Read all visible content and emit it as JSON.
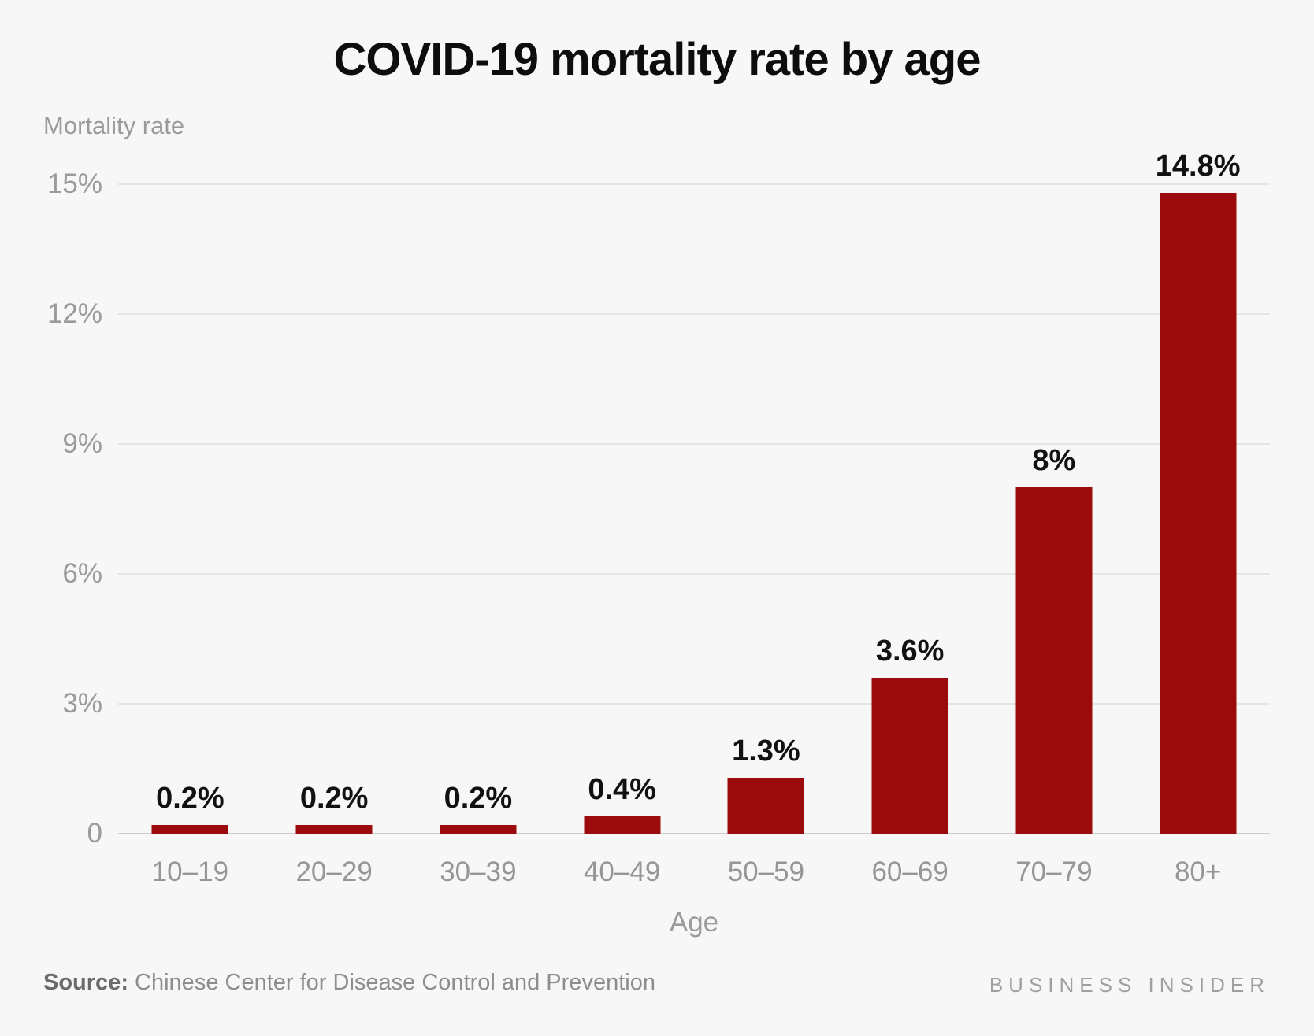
{
  "chart_data": {
    "type": "bar",
    "title": "COVID-19 mortality rate by age",
    "ylabel": "Mortality rate",
    "xlabel": "Age",
    "categories": [
      "10–19",
      "20–29",
      "30–39",
      "40–49",
      "50–59",
      "60–69",
      "70–79",
      "80+"
    ],
    "values": [
      0.2,
      0.2,
      0.2,
      0.4,
      1.3,
      3.6,
      8,
      14.8
    ],
    "value_labels": [
      "0.2%",
      "0.2%",
      "0.2%",
      "0.4%",
      "1.3%",
      "3.6%",
      "8%",
      "14.8%"
    ],
    "ylim": [
      0,
      15
    ],
    "yticks": [
      0,
      3,
      6,
      9,
      12,
      15
    ],
    "ytick_labels": [
      "0",
      "3%",
      "6%",
      "9%",
      "12%",
      "15%"
    ],
    "grid": true,
    "legend": "none",
    "bar_color": "#9b0b0d"
  },
  "colors": {
    "background": "#f7f7f8",
    "gridline": "#e5e5e5",
    "baseline": "#cccccc",
    "axis_text": "#9b9b9b",
    "value_label_text": "#111111",
    "brand_text": "#a0a0a0"
  },
  "footer": {
    "source_label": "Source:",
    "source_text": " Chinese Center for Disease Control and Prevention",
    "brand": "BUSINESS INSIDER"
  }
}
